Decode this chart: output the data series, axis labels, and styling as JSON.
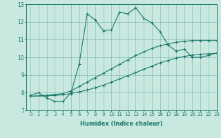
{
  "title": "",
  "xlabel": "Humidex (Indice chaleur)",
  "bg_color": "#c8e8e0",
  "line_color": "#1a7a6a",
  "xlim": [
    -0.5,
    23
  ],
  "ylim": [
    7,
    13
  ],
  "xticks": [
    0,
    1,
    2,
    3,
    4,
    5,
    6,
    7,
    8,
    9,
    10,
    11,
    12,
    13,
    14,
    15,
    16,
    17,
    18,
    19,
    20,
    21,
    22,
    23
  ],
  "yticks": [
    7,
    8,
    9,
    10,
    11,
    12,
    13
  ],
  "series1_x": [
    0,
    1,
    2,
    3,
    4,
    5,
    6,
    7,
    8,
    9,
    10,
    11,
    12,
    13,
    14,
    15,
    16,
    17,
    18,
    19,
    20,
    21,
    22,
    23
  ],
  "series1_y": [
    7.85,
    8.0,
    7.7,
    7.5,
    7.5,
    8.0,
    9.6,
    12.45,
    12.1,
    11.5,
    11.55,
    12.55,
    12.45,
    12.8,
    12.2,
    11.95,
    11.45,
    10.7,
    10.35,
    10.45,
    10.0,
    10.0,
    10.1,
    10.25
  ],
  "series2_x": [
    0,
    2,
    3,
    4,
    5,
    6,
    7,
    8,
    9,
    10,
    11,
    12,
    13,
    14,
    15,
    16,
    17,
    18,
    19,
    20,
    21,
    22,
    23
  ],
  "series2_y": [
    7.8,
    7.85,
    7.9,
    7.95,
    8.1,
    8.35,
    8.6,
    8.85,
    9.1,
    9.35,
    9.6,
    9.85,
    10.1,
    10.3,
    10.5,
    10.65,
    10.75,
    10.85,
    10.9,
    10.95,
    10.95,
    10.95,
    10.95
  ],
  "series3_x": [
    0,
    2,
    3,
    4,
    5,
    6,
    7,
    8,
    9,
    10,
    11,
    12,
    13,
    14,
    15,
    16,
    17,
    18,
    19,
    20,
    21,
    22,
    23
  ],
  "series3_y": [
    7.8,
    7.82,
    7.85,
    7.88,
    7.95,
    8.05,
    8.15,
    8.28,
    8.42,
    8.6,
    8.78,
    8.96,
    9.14,
    9.32,
    9.5,
    9.68,
    9.82,
    9.95,
    10.05,
    10.12,
    10.17,
    10.2,
    10.22
  ]
}
